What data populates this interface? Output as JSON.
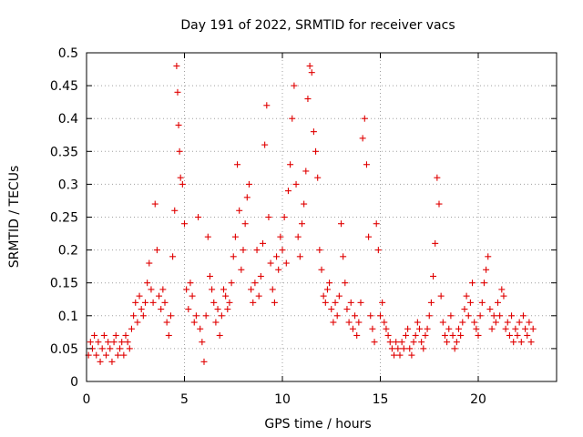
{
  "chart_data": {
    "type": "scatter",
    "title": "Day 191 of 2022, SRMTID for receiver vacs",
    "xlabel": "GPS time / hours",
    "ylabel": "SRMTID / TECUs",
    "xlim": [
      0,
      24
    ],
    "ylim": [
      0,
      0.5
    ],
    "xticks": [
      0,
      5,
      10,
      15,
      20
    ],
    "xtick_labels": [
      "0",
      "5",
      "10",
      "15",
      "20"
    ],
    "yticks": [
      0,
      0.05,
      0.1,
      0.15,
      0.2,
      0.25,
      0.3,
      0.35,
      0.4,
      0.45,
      0.5
    ],
    "ytick_labels": [
      "0",
      "0.05",
      "0.1",
      "0.15",
      "0.2",
      "0.25",
      "0.3",
      "0.35",
      "0.4",
      "0.45",
      "0.5"
    ],
    "grid": true,
    "marker": "+",
    "color": "#e00000",
    "series": [
      {
        "name": "SRMTID",
        "points": [
          [
            0.1,
            0.04
          ],
          [
            0.2,
            0.06
          ],
          [
            0.3,
            0.05
          ],
          [
            0.4,
            0.07
          ],
          [
            0.5,
            0.04
          ],
          [
            0.6,
            0.06
          ],
          [
            0.7,
            0.03
          ],
          [
            0.8,
            0.05
          ],
          [
            0.9,
            0.07
          ],
          [
            1.0,
            0.04
          ],
          [
            1.1,
            0.06
          ],
          [
            1.2,
            0.05
          ],
          [
            1.3,
            0.03
          ],
          [
            1.4,
            0.06
          ],
          [
            1.5,
            0.07
          ],
          [
            1.6,
            0.04
          ],
          [
            1.7,
            0.05
          ],
          [
            1.8,
            0.06
          ],
          [
            1.9,
            0.04
          ],
          [
            2.0,
            0.07
          ],
          [
            2.1,
            0.06
          ],
          [
            2.2,
            0.05
          ],
          [
            2.3,
            0.08
          ],
          [
            2.4,
            0.1
          ],
          [
            2.5,
            0.12
          ],
          [
            2.6,
            0.09
          ],
          [
            2.7,
            0.13
          ],
          [
            2.8,
            0.11
          ],
          [
            2.9,
            0.1
          ],
          [
            3.0,
            0.12
          ],
          [
            3.1,
            0.15
          ],
          [
            3.2,
            0.18
          ],
          [
            3.3,
            0.14
          ],
          [
            3.4,
            0.12
          ],
          [
            3.5,
            0.27
          ],
          [
            3.6,
            0.2
          ],
          [
            3.7,
            0.13
          ],
          [
            3.8,
            0.11
          ],
          [
            3.9,
            0.14
          ],
          [
            4.0,
            0.12
          ],
          [
            4.1,
            0.09
          ],
          [
            4.2,
            0.07
          ],
          [
            4.3,
            0.1
          ],
          [
            4.4,
            0.19
          ],
          [
            4.5,
            0.26
          ],
          [
            4.6,
            0.48
          ],
          [
            4.65,
            0.44
          ],
          [
            4.7,
            0.39
          ],
          [
            4.75,
            0.35
          ],
          [
            4.8,
            0.31
          ],
          [
            4.9,
            0.3
          ],
          [
            5.0,
            0.24
          ],
          [
            5.1,
            0.14
          ],
          [
            5.2,
            0.11
          ],
          [
            5.3,
            0.15
          ],
          [
            5.4,
            0.13
          ],
          [
            5.5,
            0.09
          ],
          [
            5.6,
            0.1
          ],
          [
            5.7,
            0.25
          ],
          [
            5.8,
            0.08
          ],
          [
            5.9,
            0.06
          ],
          [
            6.0,
            0.03
          ],
          [
            6.1,
            0.1
          ],
          [
            6.2,
            0.22
          ],
          [
            6.3,
            0.16
          ],
          [
            6.4,
            0.14
          ],
          [
            6.5,
            0.12
          ],
          [
            6.6,
            0.09
          ],
          [
            6.7,
            0.11
          ],
          [
            6.8,
            0.07
          ],
          [
            6.9,
            0.1
          ],
          [
            7.0,
            0.14
          ],
          [
            7.1,
            0.13
          ],
          [
            7.2,
            0.11
          ],
          [
            7.3,
            0.12
          ],
          [
            7.4,
            0.15
          ],
          [
            7.5,
            0.19
          ],
          [
            7.6,
            0.22
          ],
          [
            7.7,
            0.33
          ],
          [
            7.8,
            0.26
          ],
          [
            7.9,
            0.17
          ],
          [
            8.0,
            0.2
          ],
          [
            8.1,
            0.24
          ],
          [
            8.2,
            0.28
          ],
          [
            8.3,
            0.3
          ],
          [
            8.4,
            0.14
          ],
          [
            8.5,
            0.12
          ],
          [
            8.6,
            0.15
          ],
          [
            8.7,
            0.2
          ],
          [
            8.8,
            0.13
          ],
          [
            8.9,
            0.16
          ],
          [
            9.0,
            0.21
          ],
          [
            9.1,
            0.36
          ],
          [
            9.2,
            0.42
          ],
          [
            9.3,
            0.25
          ],
          [
            9.4,
            0.18
          ],
          [
            9.5,
            0.14
          ],
          [
            9.6,
            0.12
          ],
          [
            9.7,
            0.19
          ],
          [
            9.8,
            0.17
          ],
          [
            9.9,
            0.22
          ],
          [
            10.0,
            0.2
          ],
          [
            10.1,
            0.25
          ],
          [
            10.2,
            0.18
          ],
          [
            10.3,
            0.29
          ],
          [
            10.4,
            0.33
          ],
          [
            10.5,
            0.4
          ],
          [
            10.6,
            0.45
          ],
          [
            10.7,
            0.3
          ],
          [
            10.8,
            0.22
          ],
          [
            10.9,
            0.19
          ],
          [
            11.0,
            0.24
          ],
          [
            11.1,
            0.27
          ],
          [
            11.2,
            0.32
          ],
          [
            11.3,
            0.43
          ],
          [
            11.4,
            0.48
          ],
          [
            11.5,
            0.47
          ],
          [
            11.6,
            0.38
          ],
          [
            11.7,
            0.35
          ],
          [
            11.8,
            0.31
          ],
          [
            11.9,
            0.2
          ],
          [
            12.0,
            0.17
          ],
          [
            12.1,
            0.13
          ],
          [
            12.2,
            0.12
          ],
          [
            12.3,
            0.14
          ],
          [
            12.4,
            0.15
          ],
          [
            12.5,
            0.11
          ],
          [
            12.6,
            0.09
          ],
          [
            12.7,
            0.12
          ],
          [
            12.8,
            0.1
          ],
          [
            12.9,
            0.13
          ],
          [
            13.0,
            0.24
          ],
          [
            13.1,
            0.19
          ],
          [
            13.2,
            0.15
          ],
          [
            13.3,
            0.11
          ],
          [
            13.4,
            0.09
          ],
          [
            13.5,
            0.12
          ],
          [
            13.6,
            0.08
          ],
          [
            13.7,
            0.1
          ],
          [
            13.8,
            0.07
          ],
          [
            13.9,
            0.09
          ],
          [
            14.0,
            0.12
          ],
          [
            14.1,
            0.37
          ],
          [
            14.2,
            0.4
          ],
          [
            14.3,
            0.33
          ],
          [
            14.4,
            0.22
          ],
          [
            14.5,
            0.1
          ],
          [
            14.6,
            0.08
          ],
          [
            14.7,
            0.06
          ],
          [
            14.8,
            0.24
          ],
          [
            14.9,
            0.2
          ],
          [
            15.0,
            0.1
          ],
          [
            15.1,
            0.12
          ],
          [
            15.2,
            0.09
          ],
          [
            15.3,
            0.08
          ],
          [
            15.4,
            0.07
          ],
          [
            15.5,
            0.06
          ],
          [
            15.6,
            0.05
          ],
          [
            15.7,
            0.04
          ],
          [
            15.8,
            0.06
          ],
          [
            15.9,
            0.05
          ],
          [
            16.0,
            0.04
          ],
          [
            16.1,
            0.06
          ],
          [
            16.2,
            0.05
          ],
          [
            16.3,
            0.07
          ],
          [
            16.4,
            0.08
          ],
          [
            16.5,
            0.05
          ],
          [
            16.6,
            0.04
          ],
          [
            16.7,
            0.06
          ],
          [
            16.8,
            0.07
          ],
          [
            16.9,
            0.09
          ],
          [
            17.0,
            0.08
          ],
          [
            17.1,
            0.06
          ],
          [
            17.2,
            0.05
          ],
          [
            17.3,
            0.07
          ],
          [
            17.4,
            0.08
          ],
          [
            17.5,
            0.1
          ],
          [
            17.6,
            0.12
          ],
          [
            17.7,
            0.16
          ],
          [
            17.8,
            0.21
          ],
          [
            17.9,
            0.31
          ],
          [
            18.0,
            0.27
          ],
          [
            18.1,
            0.13
          ],
          [
            18.2,
            0.09
          ],
          [
            18.3,
            0.07
          ],
          [
            18.4,
            0.06
          ],
          [
            18.5,
            0.08
          ],
          [
            18.6,
            0.1
          ],
          [
            18.7,
            0.07
          ],
          [
            18.8,
            0.05
          ],
          [
            18.9,
            0.06
          ],
          [
            19.0,
            0.08
          ],
          [
            19.1,
            0.07
          ],
          [
            19.2,
            0.09
          ],
          [
            19.3,
            0.11
          ],
          [
            19.4,
            0.13
          ],
          [
            19.5,
            0.1
          ],
          [
            19.6,
            0.12
          ],
          [
            19.7,
            0.15
          ],
          [
            19.8,
            0.09
          ],
          [
            19.9,
            0.08
          ],
          [
            20.0,
            0.07
          ],
          [
            20.1,
            0.1
          ],
          [
            20.2,
            0.12
          ],
          [
            20.3,
            0.15
          ],
          [
            20.4,
            0.17
          ],
          [
            20.5,
            0.19
          ],
          [
            20.6,
            0.11
          ],
          [
            20.7,
            0.08
          ],
          [
            20.8,
            0.1
          ],
          [
            20.9,
            0.09
          ],
          [
            21.0,
            0.12
          ],
          [
            21.1,
            0.1
          ],
          [
            21.2,
            0.14
          ],
          [
            21.3,
            0.13
          ],
          [
            21.4,
            0.08
          ],
          [
            21.5,
            0.09
          ],
          [
            21.6,
            0.07
          ],
          [
            21.7,
            0.1
          ],
          [
            21.8,
            0.06
          ],
          [
            21.9,
            0.08
          ],
          [
            22.0,
            0.07
          ],
          [
            22.1,
            0.09
          ],
          [
            22.2,
            0.06
          ],
          [
            22.3,
            0.1
          ],
          [
            22.4,
            0.08
          ],
          [
            22.5,
            0.07
          ],
          [
            22.6,
            0.09
          ],
          [
            22.7,
            0.06
          ],
          [
            22.8,
            0.08
          ]
        ]
      }
    ]
  }
}
